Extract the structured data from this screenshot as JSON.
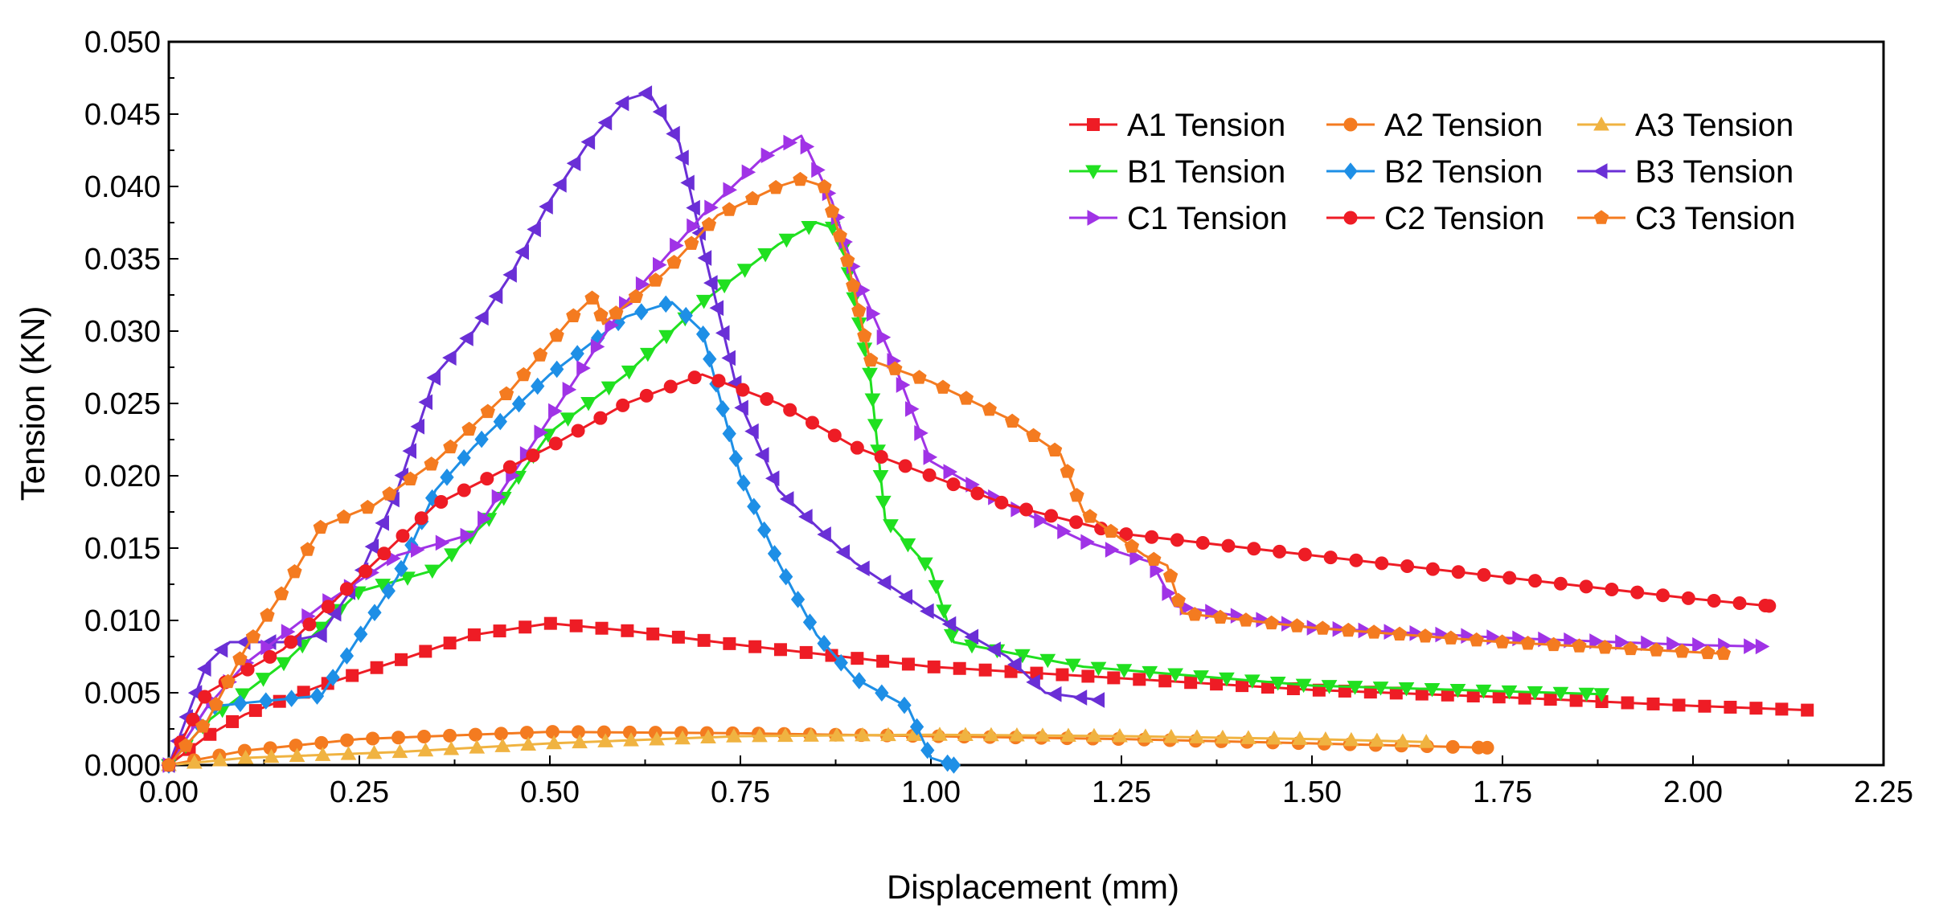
{
  "chart_data": {
    "type": "line",
    "title": "",
    "xlabel": "Displacement (mm)",
    "ylabel": "Tension (KN)",
    "xlim": [
      0,
      2.25
    ],
    "ylim": [
      0,
      0.05
    ],
    "x_ticks": [
      "0.00",
      "0.25",
      "0.50",
      "0.75",
      "1.00",
      "1.25",
      "1.50",
      "1.75",
      "2.00",
      "2.25"
    ],
    "y_ticks": [
      "0.000",
      "0.005",
      "0.010",
      "0.015",
      "0.020",
      "0.025",
      "0.030",
      "0.035",
      "0.040",
      "0.045",
      "0.050"
    ],
    "grid": false,
    "legend_position": "top-right",
    "series": [
      {
        "name": "A1 Tension",
        "color": "#ee1c25",
        "marker": "square",
        "points": [
          [
            0,
            0
          ],
          [
            0.05,
            0.002
          ],
          [
            0.1,
            0.0035
          ],
          [
            0.2,
            0.0055
          ],
          [
            0.3,
            0.0072
          ],
          [
            0.4,
            0.009
          ],
          [
            0.5,
            0.0098
          ],
          [
            0.6,
            0.0093
          ],
          [
            0.75,
            0.0083
          ],
          [
            1.0,
            0.0068
          ],
          [
            1.25,
            0.006
          ],
          [
            1.5,
            0.0052
          ],
          [
            1.75,
            0.0047
          ],
          [
            2.0,
            0.0041
          ],
          [
            2.15,
            0.0038
          ]
        ]
      },
      {
        "name": "A2 Tension",
        "color": "#f47b20",
        "marker": "circle",
        "points": [
          [
            0,
            0
          ],
          [
            0.1,
            0.001
          ],
          [
            0.25,
            0.0018
          ],
          [
            0.5,
            0.0023
          ],
          [
            0.75,
            0.0022
          ],
          [
            1.0,
            0.002
          ],
          [
            1.25,
            0.0018
          ],
          [
            1.5,
            0.0015
          ],
          [
            1.73,
            0.0012
          ]
        ]
      },
      {
        "name": "A3 Tension",
        "color": "#f0b341",
        "marker": "triangle-up",
        "points": [
          [
            0,
            0
          ],
          [
            0.1,
            0.0005
          ],
          [
            0.3,
            0.0009
          ],
          [
            0.5,
            0.0015
          ],
          [
            0.75,
            0.002
          ],
          [
            1.0,
            0.0021
          ],
          [
            1.25,
            0.002
          ],
          [
            1.5,
            0.0018
          ],
          [
            1.65,
            0.0016
          ]
        ]
      },
      {
        "name": "B1 Tension",
        "color": "#20e020",
        "marker": "triangle-down",
        "points": [
          [
            0,
            0
          ],
          [
            0.05,
            0.003
          ],
          [
            0.15,
            0.007
          ],
          [
            0.25,
            0.012
          ],
          [
            0.35,
            0.0135
          ],
          [
            0.42,
            0.017
          ],
          [
            0.5,
            0.023
          ],
          [
            0.6,
            0.027
          ],
          [
            0.7,
            0.032
          ],
          [
            0.8,
            0.036
          ],
          [
            0.85,
            0.0375
          ],
          [
            0.88,
            0.037
          ],
          [
            0.92,
            0.027
          ],
          [
            0.94,
            0.017
          ],
          [
            1.0,
            0.0135
          ],
          [
            1.03,
            0.0085
          ],
          [
            1.2,
            0.0068
          ],
          [
            1.5,
            0.0055
          ],
          [
            1.88,
            0.0049
          ]
        ]
      },
      {
        "name": "B2 Tension",
        "color": "#1e8fe6",
        "marker": "diamond",
        "points": [
          [
            0,
            0
          ],
          [
            0.05,
            0.004
          ],
          [
            0.1,
            0.0043
          ],
          [
            0.2,
            0.0048
          ],
          [
            0.3,
            0.013
          ],
          [
            0.35,
            0.019
          ],
          [
            0.4,
            0.022
          ],
          [
            0.5,
            0.027
          ],
          [
            0.6,
            0.031
          ],
          [
            0.66,
            0.032
          ],
          [
            0.7,
            0.03
          ],
          [
            0.75,
            0.02
          ],
          [
            0.8,
            0.014
          ],
          [
            0.85,
            0.009
          ],
          [
            0.9,
            0.006
          ],
          [
            0.97,
            0.004
          ],
          [
            1.0,
            0.0005
          ],
          [
            1.03,
            0.0
          ]
        ]
      },
      {
        "name": "B3 Tension",
        "color": "#6a2fd6",
        "marker": "triangle-left",
        "points": [
          [
            0,
            0
          ],
          [
            0.05,
            0.007
          ],
          [
            0.08,
            0.0085
          ],
          [
            0.15,
            0.0085
          ],
          [
            0.2,
            0.009
          ],
          [
            0.25,
            0.013
          ],
          [
            0.3,
            0.019
          ],
          [
            0.35,
            0.027
          ],
          [
            0.4,
            0.03
          ],
          [
            0.45,
            0.034
          ],
          [
            0.5,
            0.039
          ],
          [
            0.55,
            0.043
          ],
          [
            0.6,
            0.046
          ],
          [
            0.63,
            0.0465
          ],
          [
            0.67,
            0.043
          ],
          [
            0.7,
            0.036
          ],
          [
            0.75,
            0.025
          ],
          [
            0.8,
            0.019
          ],
          [
            0.9,
            0.014
          ],
          [
            1.0,
            0.0105
          ],
          [
            1.1,
            0.0075
          ],
          [
            1.15,
            0.005
          ],
          [
            1.22,
            0.0045
          ]
        ]
      },
      {
        "name": "C1 Tension",
        "color": "#a033e6",
        "marker": "triangle-right",
        "points": [
          [
            0,
            0
          ],
          [
            0.05,
            0.004
          ],
          [
            0.1,
            0.007
          ],
          [
            0.2,
            0.011
          ],
          [
            0.3,
            0.0145
          ],
          [
            0.4,
            0.016
          ],
          [
            0.5,
            0.024
          ],
          [
            0.6,
            0.032
          ],
          [
            0.7,
            0.038
          ],
          [
            0.78,
            0.042
          ],
          [
            0.83,
            0.0435
          ],
          [
            0.87,
            0.039
          ],
          [
            0.9,
            0.034
          ],
          [
            0.95,
            0.028
          ],
          [
            1.0,
            0.021
          ],
          [
            1.1,
            0.018
          ],
          [
            1.2,
            0.0155
          ],
          [
            1.29,
            0.014
          ],
          [
            1.32,
            0.011
          ],
          [
            1.5,
            0.0095
          ],
          [
            1.75,
            0.0088
          ],
          [
            2.0,
            0.0083
          ],
          [
            2.09,
            0.0082
          ]
        ]
      },
      {
        "name": "C2 Tension",
        "color": "#ee1c25",
        "marker": "circle",
        "points": [
          [
            0,
            0
          ],
          [
            0.05,
            0.005
          ],
          [
            0.15,
            0.008
          ],
          [
            0.25,
            0.013
          ],
          [
            0.35,
            0.018
          ],
          [
            0.5,
            0.022
          ],
          [
            0.6,
            0.025
          ],
          [
            0.7,
            0.027
          ],
          [
            0.8,
            0.025
          ],
          [
            0.9,
            0.022
          ],
          [
            1.0,
            0.02
          ],
          [
            1.1,
            0.018
          ],
          [
            1.25,
            0.016
          ],
          [
            1.5,
            0.0145
          ],
          [
            1.75,
            0.013
          ],
          [
            2.0,
            0.0115
          ],
          [
            2.1,
            0.011
          ]
        ]
      },
      {
        "name": "C3 Tension",
        "color": "#f47b20",
        "marker": "pentagon",
        "points": [
          [
            0,
            0
          ],
          [
            0.05,
            0.003
          ],
          [
            0.1,
            0.008
          ],
          [
            0.15,
            0.012
          ],
          [
            0.2,
            0.0165
          ],
          [
            0.27,
            0.018
          ],
          [
            0.35,
            0.021
          ],
          [
            0.45,
            0.026
          ],
          [
            0.53,
            0.031
          ],
          [
            0.56,
            0.0325
          ],
          [
            0.57,
            0.0305
          ],
          [
            0.65,
            0.034
          ],
          [
            0.72,
            0.038
          ],
          [
            0.8,
            0.04
          ],
          [
            0.83,
            0.0405
          ],
          [
            0.86,
            0.04
          ],
          [
            0.89,
            0.035
          ],
          [
            0.92,
            0.028
          ],
          [
            1.0,
            0.0265
          ],
          [
            1.1,
            0.024
          ],
          [
            1.17,
            0.0215
          ],
          [
            1.2,
            0.0175
          ],
          [
            1.28,
            0.0145
          ],
          [
            1.31,
            0.0138
          ],
          [
            1.33,
            0.0105
          ],
          [
            1.5,
            0.0095
          ],
          [
            1.75,
            0.0085
          ],
          [
            2.04,
            0.0077
          ]
        ]
      }
    ]
  }
}
